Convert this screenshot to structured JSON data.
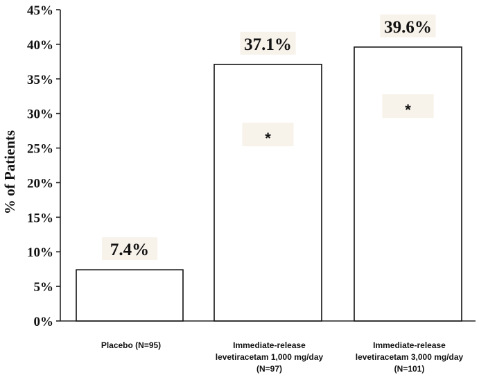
{
  "chart_data": {
    "type": "bar",
    "categories": [
      [
        "Placebo (N=95)"
      ],
      [
        "Immediate-release",
        "levetiracetam 1,000 mg/day",
        "(N=97)"
      ],
      [
        "Immediate-release",
        "levetiracetam 3,000 mg/day",
        "(N=101)"
      ]
    ],
    "values": [
      7.4,
      37.1,
      39.6
    ],
    "data_labels": [
      "7.4%",
      "37.1%",
      "39.6%"
    ],
    "significance_markers": [
      "",
      "*",
      "*"
    ],
    "ylabel": "% of Patients",
    "ylim": [
      0,
      45
    ],
    "y_ticks": [
      0,
      5,
      10,
      15,
      20,
      25,
      30,
      35,
      40,
      45
    ],
    "y_tick_labels": [
      "0%",
      "5%",
      "10%",
      "15%",
      "20%",
      "25%",
      "30%",
      "35%",
      "40%",
      "45%"
    ],
    "grid": false,
    "bar_fill": "#ffffff",
    "bar_stroke": "#111111"
  }
}
